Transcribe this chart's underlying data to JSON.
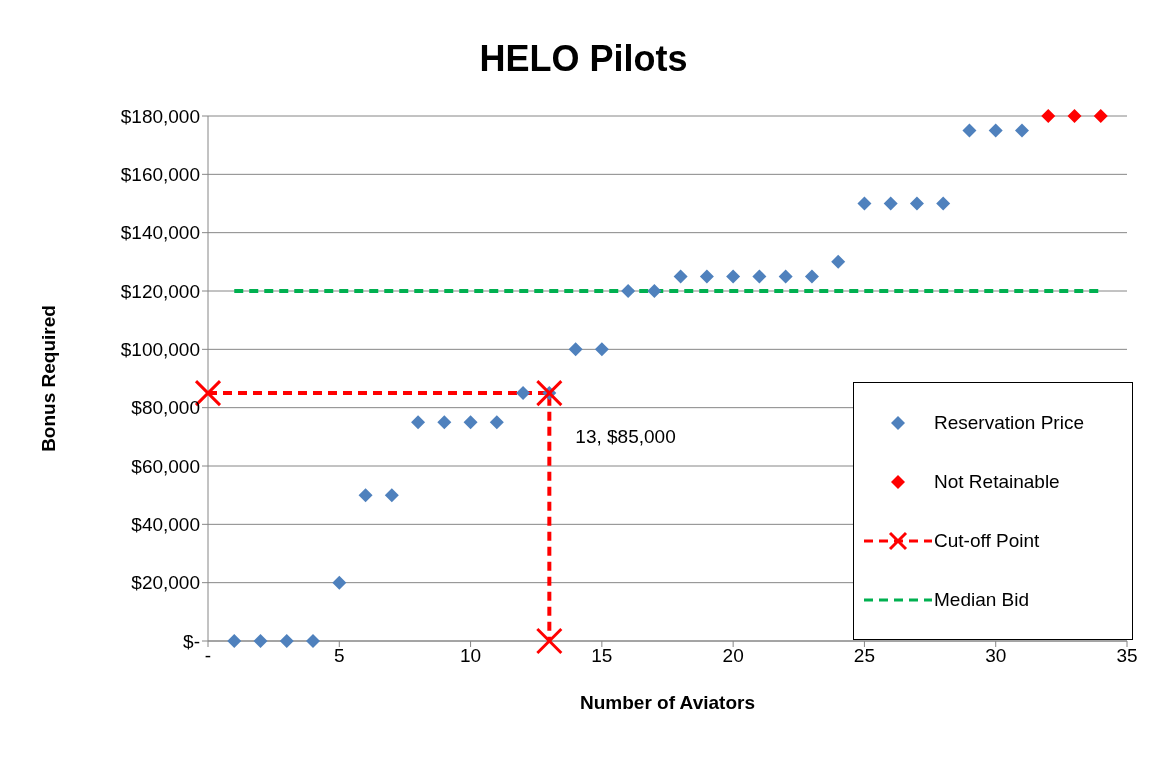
{
  "chart_data": {
    "type": "scatter",
    "title": "HELO Pilots",
    "xlabel": "Number of Aviators",
    "ylabel": "Bonus Required",
    "xlim": [
      0,
      35
    ],
    "xticks": [
      {
        "value": 0,
        "label": "-"
      },
      5,
      10,
      15,
      20,
      25,
      30,
      35
    ],
    "ylim": [
      0,
      180000
    ],
    "yticks": [
      {
        "value": 0,
        "label": "$-"
      },
      {
        "value": 20000,
        "label": "$20,000"
      },
      {
        "value": 40000,
        "label": "$40,000"
      },
      {
        "value": 60000,
        "label": "$60,000"
      },
      {
        "value": 80000,
        "label": "$80,000"
      },
      {
        "value": 100000,
        "label": "$100,000"
      },
      {
        "value": 120000,
        "label": "$120,000"
      },
      {
        "value": 140000,
        "label": "$140,000"
      },
      {
        "value": 160000,
        "label": "$160,000"
      },
      {
        "value": 180000,
        "label": "$180,000"
      }
    ],
    "grid": "y",
    "legend": "right",
    "series": [
      {
        "name": "Reservation Price",
        "marker": "diamond",
        "color": "#4f81bd",
        "x": [
          1,
          2,
          3,
          4,
          5,
          6,
          7,
          8,
          9,
          10,
          11,
          12,
          13,
          14,
          15,
          16,
          17,
          18,
          19,
          20,
          21,
          22,
          23,
          24,
          25,
          26,
          27,
          28,
          29,
          30,
          31
        ],
        "values": [
          0,
          0,
          0,
          0,
          20000,
          50000,
          50000,
          75000,
          75000,
          75000,
          75000,
          85000,
          85000,
          100000,
          100000,
          120000,
          120000,
          125000,
          125000,
          125000,
          125000,
          125000,
          125000,
          130000,
          150000,
          150000,
          150000,
          150000,
          175000,
          175000,
          175000
        ]
      },
      {
        "name": "Not Retainable",
        "marker": "diamond",
        "color": "#ff0000",
        "x": [
          32,
          33,
          34
        ],
        "values": [
          180000,
          180000,
          180000
        ]
      },
      {
        "name": "Cut-off Point",
        "type": "line",
        "marker": "cross",
        "line_style": "dashed",
        "color": "#ff0000",
        "x": [
          0,
          13,
          13
        ],
        "values": [
          85000,
          85000,
          0
        ]
      },
      {
        "name": "Median Bid",
        "type": "line",
        "marker": "none",
        "line_style": "dashed",
        "color": "#00b050",
        "x": [
          1,
          34
        ],
        "values": [
          120000,
          120000
        ]
      }
    ],
    "annotations": [
      {
        "text": "13,  $85,000",
        "x": 13,
        "y": 85000
      }
    ]
  }
}
